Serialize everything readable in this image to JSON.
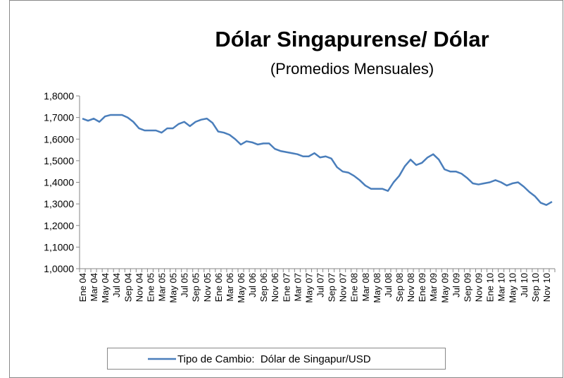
{
  "chart_data": {
    "type": "line",
    "title": "Dólar Singapurense/ Dólar",
    "subtitle": "(Promedios Mensuales)",
    "categories": [
      "Ene 04",
      null,
      "Mar 04",
      null,
      "May 04",
      null,
      "Jul 04",
      null,
      "Sep 04",
      null,
      "Nov 04",
      null,
      "Ene 05",
      null,
      "Mar 05",
      null,
      "May 05",
      null,
      "Jul 05",
      null,
      "Sep 05",
      null,
      "Nov 05",
      null,
      "Ene 06",
      null,
      "Mar 06",
      null,
      "May 06",
      null,
      "Jul 06",
      null,
      "Sep 06",
      null,
      "Nov 06",
      null,
      "Ene 07",
      null,
      "Mar 07",
      null,
      "May 07",
      null,
      "Jul 07",
      null,
      "Sep 07",
      null,
      "Nov 07",
      null,
      "Ene 08",
      null,
      "Mar 08",
      null,
      "May 08",
      null,
      "Jul 08",
      null,
      "Sep 08",
      null,
      "Nov 08",
      null,
      "Ene 09",
      null,
      "Mar 09",
      null,
      "May 09",
      null,
      "Jul 09",
      null,
      "Sep 09",
      null,
      "Nov 09",
      null,
      "Ene 10",
      null,
      "Mar 10",
      null,
      "May 10",
      null,
      "Jul 10",
      null,
      "Sep 10",
      null,
      "Nov 10",
      null
    ],
    "series": [
      {
        "name": "Tipo de Cambio:  Dólar de Singapur/USD",
        "color": "#4a7ebb",
        "values": [
          1.695,
          1.685,
          1.695,
          1.68,
          1.705,
          1.712,
          1.712,
          1.712,
          1.7,
          1.68,
          1.65,
          1.64,
          1.64,
          1.64,
          1.63,
          1.65,
          1.65,
          1.67,
          1.68,
          1.66,
          1.68,
          1.69,
          1.695,
          1.675,
          1.635,
          1.63,
          1.62,
          1.6,
          1.575,
          1.59,
          1.585,
          1.575,
          1.58,
          1.58,
          1.555,
          1.545,
          1.54,
          1.535,
          1.53,
          1.52,
          1.52,
          1.535,
          1.515,
          1.52,
          1.51,
          1.47,
          1.45,
          1.445,
          1.43,
          1.41,
          1.385,
          1.37,
          1.37,
          1.37,
          1.36,
          1.4,
          1.43,
          1.475,
          1.505,
          1.48,
          1.49,
          1.515,
          1.53,
          1.505,
          1.46,
          1.45,
          1.45,
          1.44,
          1.42,
          1.395,
          1.39,
          1.395,
          1.4,
          1.41,
          1.4,
          1.385,
          1.395,
          1.4,
          1.38,
          1.355,
          1.335,
          1.305,
          1.295,
          1.31
        ]
      }
    ],
    "ylim": [
      1.0,
      1.8
    ],
    "yticks": [
      {
        "value": 1.0,
        "label": "1,0000"
      },
      {
        "value": 1.1,
        "label": "1,1000"
      },
      {
        "value": 1.2,
        "label": "1,2000"
      },
      {
        "value": 1.3,
        "label": "1,3000"
      },
      {
        "value": 1.4,
        "label": "1,4000"
      },
      {
        "value": 1.5,
        "label": "1,5000"
      },
      {
        "value": 1.6,
        "label": "1,6000"
      },
      {
        "value": 1.7,
        "label": "1,7000"
      },
      {
        "value": 1.8,
        "label": "1,8000"
      }
    ],
    "grid": false,
    "legend": "bottom"
  }
}
